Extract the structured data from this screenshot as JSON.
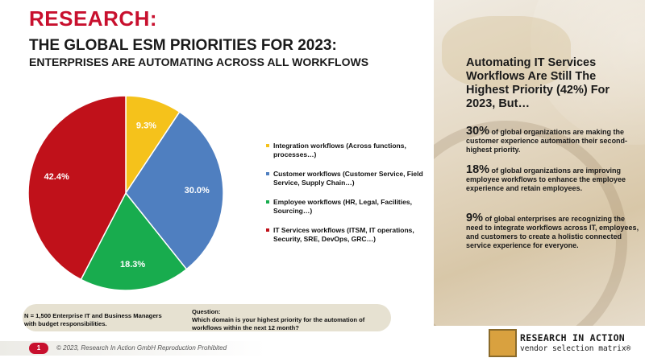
{
  "header": {
    "label": "RESEARCH:",
    "title": "THE GLOBAL ESM PRIORITIES FOR 2023:",
    "subtitle": "ENTERPRISES ARE AUTOMATING ACROSS ALL WORKFLOWS"
  },
  "chart_data": {
    "type": "pie",
    "title": "",
    "slices": [
      {
        "label": "Integration workflows (Across functions, processes…)",
        "value": 9.3,
        "display": "9.3%",
        "color": "#f5c21b"
      },
      {
        "label": "Customer workflows (Customer Service, Field Service, Supply Chain…)",
        "value": 30.0,
        "display": "30.0%",
        "color": "#4f7fc0"
      },
      {
        "label": "Employee workflows (HR, Legal, Facilities, Sourcing…)",
        "value": 18.3,
        "display": "18.3%",
        "color": "#18ac4e"
      },
      {
        "label": "IT Services workflows (ITSM, IT operations, Security, SRE, DevOps, GRC…)",
        "value": 42.4,
        "display": "42.4%",
        "color": "#c0111a"
      }
    ],
    "legend_position": "right"
  },
  "note": {
    "sample": "N = 1,500 Enterprise IT and Business Managers with budget responsibilities.",
    "question_label": "Question:",
    "question_text": "Which domain is your highest priority for the automation of workflows within the next 12 month?"
  },
  "footer": {
    "page": "1",
    "copyright": "© 2023, Research In Action GmbH Reproduction Prohibited"
  },
  "panel": {
    "heading": "Automating IT Services Workflows Are Still The Highest Priority (42%) For 2023, But…",
    "stats": [
      {
        "number": "30%",
        "text": " of global organizations are making the customer experience automation their second-highest priority."
      },
      {
        "number": "18%",
        "text": " of global organizations are improving employee workflows to enhance the employee experience and retain employees."
      },
      {
        "number": "9%",
        "text": " of global enterprises are recognizing the need to integrate workflows across IT, employees, and customers to create a holistic connected service experience for everyone."
      }
    ]
  },
  "logo": {
    "line1": "RESEARCH IN ACTION",
    "line2": "vendor selection matrix®"
  }
}
